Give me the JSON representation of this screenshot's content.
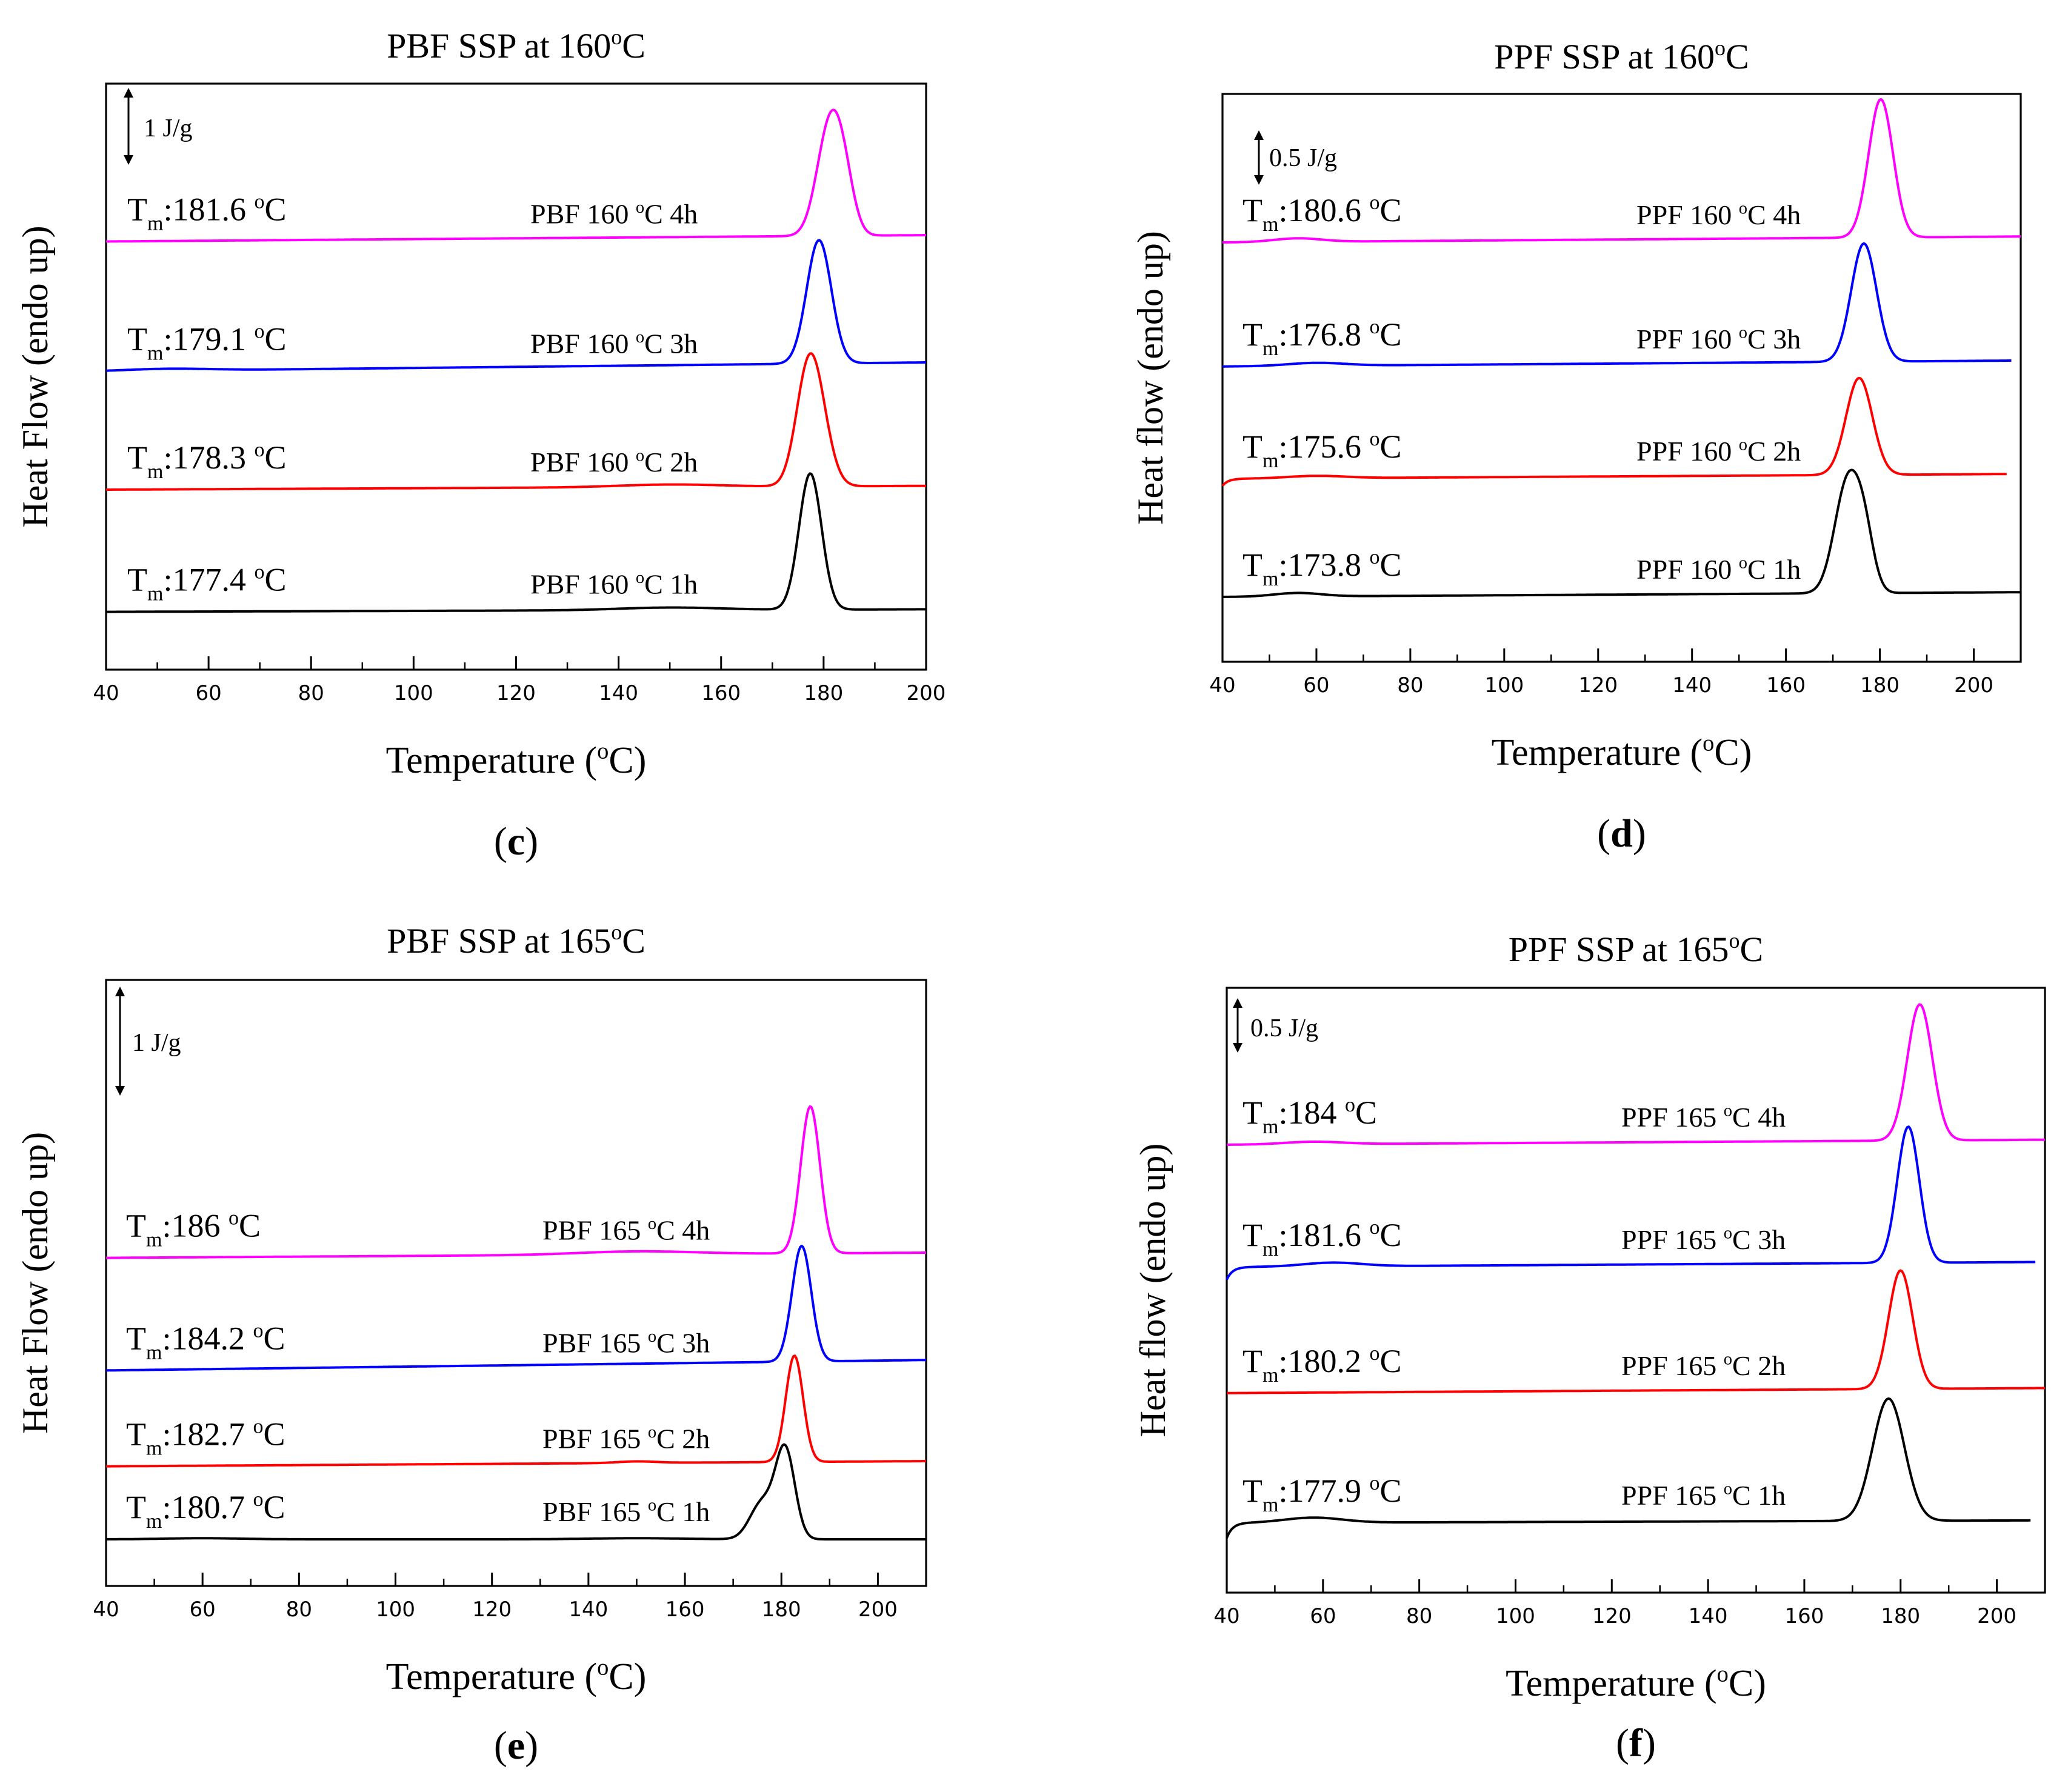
{
  "figure": {
    "panels": [
      {
        "id": "c",
        "panel_label": "c",
        "scale_bar_label": "1 J/g",
        "chart_data": {
          "type": "line",
          "title": "PBF SSP at 160°C",
          "title_main": "PBF SSP at 160",
          "title_degree": "o",
          "title_unit": "C",
          "xlabel_main": "Temperature (",
          "xlabel_degree": "o",
          "xlabel_unit": "C)",
          "ylabel": "Heat Flow (endo up)",
          "xlim": [
            40,
            200
          ],
          "xticks": [
            40,
            60,
            80,
            100,
            120,
            140,
            160,
            180,
            200
          ],
          "series": [
            {
              "name": "PBF 160 °C 1h",
              "name_pre": "PBF 160 ",
              "name_deg": "o",
              "name_post": "C 1h",
              "tm_label": "T",
              "tm_sub": "m",
              "tm_value": ":177.4 °C",
              "tm_value_pre": ":177.4 ",
              "tm_value_deg": "o",
              "tm_value_post": "C",
              "color": "#000000",
              "baseline_start": 0.04,
              "baseline_end": 0.06,
              "x_start": 40,
              "x_end": 200,
              "peaks": [
                {
                  "x": 177.4,
                  "h": 1.07,
                  "w": 2.2
                }
              ],
              "bumps": [
                {
                  "x": 150,
                  "h": 0.02,
                  "w": 10
                }
              ]
            },
            {
              "name": "PBF 160 °C 2h",
              "name_pre": "PBF 160 ",
              "name_deg": "o",
              "name_post": "C 2h",
              "tm_label": "T",
              "tm_sub": "m",
              "tm_value": ":178.3 °C",
              "tm_value_pre": ":178.3 ",
              "tm_value_deg": "o",
              "tm_value_post": "C",
              "color": "#ff0000",
              "baseline_start": 1.0,
              "baseline_end": 1.03,
              "x_start": 40,
              "x_end": 200,
              "peaks": [
                {
                  "x": 176.5,
                  "h": 0.55,
                  "w": 2.3
                },
                {
                  "x": 178.6,
                  "h": 0.6,
                  "w": 2.5
                }
              ],
              "bumps": [
                {
                  "x": 150,
                  "h": 0.02,
                  "w": 10
                }
              ]
            },
            {
              "name": "PBF 160 °C 3h",
              "name_pre": "PBF 160 ",
              "name_deg": "o",
              "name_post": "C 3h",
              "tm_label": "T",
              "tm_sub": "m",
              "tm_value": ":179.1 °C",
              "tm_value_pre": ":179.1 ",
              "tm_value_deg": "o",
              "tm_value_post": "C",
              "color": "#0000ff",
              "baseline_start": 1.93,
              "baseline_end": 2.0,
              "x_start": 40,
              "x_end": 200,
              "peaks": [
                {
                  "x": 179.1,
                  "h": 0.97,
                  "w": 2.4
                }
              ],
              "bumps": [
                {
                  "x": 52,
                  "h": 0.015,
                  "w": 8
                }
              ]
            },
            {
              "name": "PBF 160 °C 4h",
              "name_pre": "PBF 160 ",
              "name_deg": "o",
              "name_post": "C 4h",
              "tm_label": "T",
              "tm_sub": "m",
              "tm_value": ":181.6 °C",
              "tm_value_pre": ":181.6 ",
              "tm_value_deg": "o",
              "tm_value_post": "C",
              "color": "#ff00ff",
              "baseline_start": 2.95,
              "baseline_end": 3.0,
              "x_start": 40,
              "x_end": 200,
              "peaks": [
                {
                  "x": 181.2,
                  "h": 0.85,
                  "w": 2.5
                },
                {
                  "x": 184.0,
                  "h": 0.3,
                  "w": 2.0
                }
              ],
              "bumps": []
            }
          ]
        }
      },
      {
        "id": "d",
        "panel_label": "d",
        "scale_bar_label": "0.5 J/g",
        "chart_data": {
          "type": "line",
          "title": "PPF SSP at 160°C",
          "title_main": "PPF SSP at 160",
          "title_degree": "o",
          "title_unit": "C",
          "xlabel_main": "Temperature (",
          "xlabel_degree": "o",
          "xlabel_unit": "C)",
          "ylabel": "Heat flow (endo up)",
          "xlim": [
            40,
            210
          ],
          "xticks": [
            40,
            60,
            80,
            100,
            120,
            140,
            160,
            180,
            200
          ],
          "series": [
            {
              "name": "PPF 160 °C 1h",
              "name_pre": "PPF 160 ",
              "name_deg": "o",
              "name_post": "C 1h",
              "tm_label": "T",
              "tm_sub": "m",
              "tm_value": ":173.8 °C",
              "tm_value_pre": ":173.8 ",
              "tm_value_deg": "o",
              "tm_value_post": "C",
              "color": "#000000",
              "baseline_start": 0.0,
              "baseline_end": 0.04,
              "x_start": 40,
              "x_end": 210,
              "peaks": [
                {
                  "x": 173.2,
                  "h": 0.95,
                  "w": 2.8
                },
                {
                  "x": 176.8,
                  "h": 0.35,
                  "w": 2.0
                }
              ],
              "bumps": [
                {
                  "x": 56,
                  "h": 0.03,
                  "w": 5
                }
              ]
            },
            {
              "name": "PPF 160 °C 2h",
              "name_pre": "PPF 160 ",
              "name_deg": "o",
              "name_post": "C 2h",
              "tm_label": "T",
              "tm_sub": "m",
              "tm_value": ":175.6 °C",
              "tm_value_pre": ":175.6 ",
              "tm_value_deg": "o",
              "tm_value_post": "C",
              "color": "#ff0000",
              "baseline_start": 1.0,
              "baseline_end": 1.04,
              "x_start": 40,
              "x_end": 207,
              "peaks": [
                {
                  "x": 175.6,
                  "h": 0.82,
                  "w": 2.8
                }
              ],
              "bumps": [
                {
                  "x": 60,
                  "h": 0.02,
                  "w": 6
                }
              ],
              "start_dip": 0.06
            },
            {
              "name": "PPF 160 °C 3h",
              "name_pre": "PPF 160 ",
              "name_deg": "o",
              "name_post": "C 3h",
              "tm_label": "T",
              "tm_sub": "m",
              "tm_value": ":176.8 °C",
              "tm_value_pre": ":176.8 ",
              "tm_value_deg": "o",
              "tm_value_post": "C",
              "color": "#0000ff",
              "baseline_start": 1.95,
              "baseline_end": 2.0,
              "x_start": 40,
              "x_end": 208,
              "peaks": [
                {
                  "x": 176.6,
                  "h": 1.0,
                  "w": 2.7
                }
              ],
              "bumps": [
                {
                  "x": 60,
                  "h": 0.025,
                  "w": 6
                }
              ]
            },
            {
              "name": "PPF 160 °C 4h",
              "name_pre": "PPF 160 ",
              "name_deg": "o",
              "name_post": "C 4h",
              "tm_label": "T",
              "tm_sub": "m",
              "tm_value": ":180.6 °C",
              "tm_value_pre": ":180.6 ",
              "tm_value_deg": "o",
              "tm_value_post": "C",
              "color": "#ff00ff",
              "baseline_start": 3.0,
              "baseline_end": 3.05,
              "x_start": 40,
              "x_end": 210,
              "peaks": [
                {
                  "x": 180.2,
                  "h": 1.17,
                  "w": 2.6
                }
              ],
              "bumps": [
                {
                  "x": 56,
                  "h": 0.03,
                  "w": 5
                }
              ]
            }
          ]
        }
      },
      {
        "id": "e",
        "panel_label": "e",
        "scale_bar_label": "1 J/g",
        "chart_data": {
          "type": "line",
          "title": "PBF SSP at 165°C",
          "title_main": "PBF SSP at 165",
          "title_degree": "o",
          "title_unit": "C",
          "xlabel_main": "Temperature (",
          "xlabel_degree": "o",
          "xlabel_unit": "C)",
          "ylabel": "Heat Flow (endo up)",
          "xlim": [
            40,
            210
          ],
          "xticks": [
            40,
            60,
            80,
            100,
            120,
            140,
            160,
            180,
            200
          ],
          "series": [
            {
              "name": "PBF 165 °C 1h",
              "name_pre": "PBF 165 ",
              "name_deg": "o",
              "name_post": "C 1h",
              "tm_label": "T",
              "tm_sub": "m",
              "tm_value": ":180.7 °C",
              "tm_value_pre": ":180.7 ",
              "tm_value_deg": "o",
              "tm_value_post": "C",
              "color": "#000000",
              "baseline_start": 0.0,
              "baseline_end": 0.0,
              "x_start": 40,
              "x_end": 210,
              "peaks": [
                {
                  "x": 176.0,
                  "h": 0.35,
                  "w": 2.5
                },
                {
                  "x": 180.8,
                  "h": 0.85,
                  "w": 2.0
                }
              ],
              "bumps": [
                {
                  "x": 60,
                  "h": 0.01,
                  "w": 8
                },
                {
                  "x": 150,
                  "h": 0.01,
                  "w": 10
                }
              ]
            },
            {
              "name": "PBF 165 °C 2h",
              "name_pre": "PBF 165 ",
              "name_deg": "o",
              "name_post": "C 2h",
              "tm_label": "T",
              "tm_sub": "m",
              "tm_value": ":182.7 °C",
              "tm_value_pre": ":182.7 ",
              "tm_value_deg": "o",
              "tm_value_post": "C",
              "color": "#ff0000",
              "baseline_start": 0.7,
              "baseline_end": 0.75,
              "x_start": 40,
              "x_end": 210,
              "peaks": [
                {
                  "x": 182.7,
                  "h": 1.02,
                  "w": 1.8
                }
              ],
              "bumps": [
                {
                  "x": 150,
                  "h": 0.015,
                  "w": 4
                }
              ]
            },
            {
              "name": "PBF 165 °C 3h",
              "name_pre": "PBF 165 ",
              "name_deg": "o",
              "name_post": "C 3h",
              "tm_label": "T",
              "tm_sub": "m",
              "tm_value": ":184.2 °C",
              "tm_value_pre": ":184.2 ",
              "tm_value_deg": "o",
              "tm_value_post": "C",
              "color": "#0000ff",
              "baseline_start": 1.62,
              "baseline_end": 1.72,
              "x_start": 40,
              "x_end": 210,
              "peaks": [
                {
                  "x": 184.2,
                  "h": 1.11,
                  "w": 2.0
                }
              ],
              "bumps": []
            },
            {
              "name": "PBF 165 °C 4h",
              "name_pre": "PBF 165 ",
              "name_deg": "o",
              "name_post": "C 4h",
              "tm_label": "T",
              "tm_sub": "m",
              "tm_value": ":186 °C",
              "tm_value_pre": ":186 ",
              "tm_value_deg": "o",
              "tm_value_post": "C",
              "color": "#ff00ff",
              "baseline_start": 2.7,
              "baseline_end": 2.75,
              "x_start": 40,
              "x_end": 210,
              "peaks": [
                {
                  "x": 186.0,
                  "h": 1.41,
                  "w": 2.0
                }
              ],
              "bumps": [
                {
                  "x": 150,
                  "h": 0.03,
                  "w": 12
                }
              ]
            }
          ]
        }
      },
      {
        "id": "f",
        "panel_label": "f",
        "scale_bar_label": "0.5 J/g",
        "chart_data": {
          "type": "line",
          "title": "PPF SSP at 165°C",
          "title_main": "PPF SSP at 165",
          "title_degree": "o",
          "title_unit": "C",
          "xlabel_main": "Temperature (",
          "xlabel_degree": "o",
          "xlabel_unit": "C)",
          "ylabel": "Heat flow (endo up)",
          "xlim": [
            40,
            210
          ],
          "xticks": [
            40,
            60,
            80,
            100,
            120,
            140,
            160,
            180,
            200
          ],
          "series": [
            {
              "name": "PPF 165 °C 1h",
              "name_pre": "PPF 165 ",
              "name_deg": "o",
              "name_post": "C 1h",
              "tm_label": "T",
              "tm_sub": "m",
              "tm_value": ":177.9 °C",
              "tm_value_pre": ":177.9 ",
              "tm_value_deg": "o",
              "tm_value_post": "C",
              "color": "#000000",
              "baseline_start": 0.0,
              "baseline_end": 0.02,
              "x_start": 40,
              "x_end": 207,
              "peaks": [
                {
                  "x": 177.5,
                  "h": 0.97,
                  "w": 3.3
                }
              ],
              "bumps": [
                {
                  "x": 58,
                  "h": 0.04,
                  "w": 6
                }
              ],
              "start_dip": 0.12
            },
            {
              "name": "PPF 165 °C 2h",
              "name_pre": "PPF 165 ",
              "name_deg": "o",
              "name_post": "C 2h",
              "tm_label": "T",
              "tm_sub": "m",
              "tm_value": ":180.2 °C",
              "tm_value_pre": ":180.2 ",
              "tm_value_deg": "o",
              "tm_value_post": "C",
              "color": "#ff0000",
              "baseline_start": 1.03,
              "baseline_end": 1.07,
              "x_start": 40,
              "x_end": 210,
              "peaks": [
                {
                  "x": 180.0,
                  "h": 0.94,
                  "w": 2.5
                }
              ],
              "bumps": []
            },
            {
              "name": "PPF 165 °C 3h",
              "name_pre": "PPF 165 ",
              "name_deg": "o",
              "name_post": "C 3h",
              "tm_label": "T",
              "tm_sub": "m",
              "tm_value": ":181.6 °C",
              "tm_value_pre": ":181.6 ",
              "tm_value_deg": "o",
              "tm_value_post": "C",
              "color": "#0000ff",
              "baseline_start": 2.03,
              "baseline_end": 2.07,
              "x_start": 40,
              "x_end": 208,
              "peaks": [
                {
                  "x": 181.6,
                  "h": 1.08,
                  "w": 2.3
                }
              ],
              "bumps": [
                {
                  "x": 62,
                  "h": 0.03,
                  "w": 6
                }
              ],
              "start_dip": 0.1
            },
            {
              "name": "PPF 165 °C 4h",
              "name_pre": "PPF 165 ",
              "name_deg": "o",
              "name_post": "C 4h",
              "tm_label": "T",
              "tm_sub": "m",
              "tm_value": ":184 °C",
              "tm_value_pre": ":184 ",
              "tm_value_deg": "o",
              "tm_value_post": "C",
              "color": "#ff00ff",
              "baseline_start": 3.0,
              "baseline_end": 3.04,
              "x_start": 40,
              "x_end": 210,
              "peaks": [
                {
                  "x": 184.0,
                  "h": 1.08,
                  "w": 2.6
                }
              ],
              "bumps": [
                {
                  "x": 58,
                  "h": 0.02,
                  "w": 6
                }
              ]
            }
          ]
        }
      }
    ]
  }
}
